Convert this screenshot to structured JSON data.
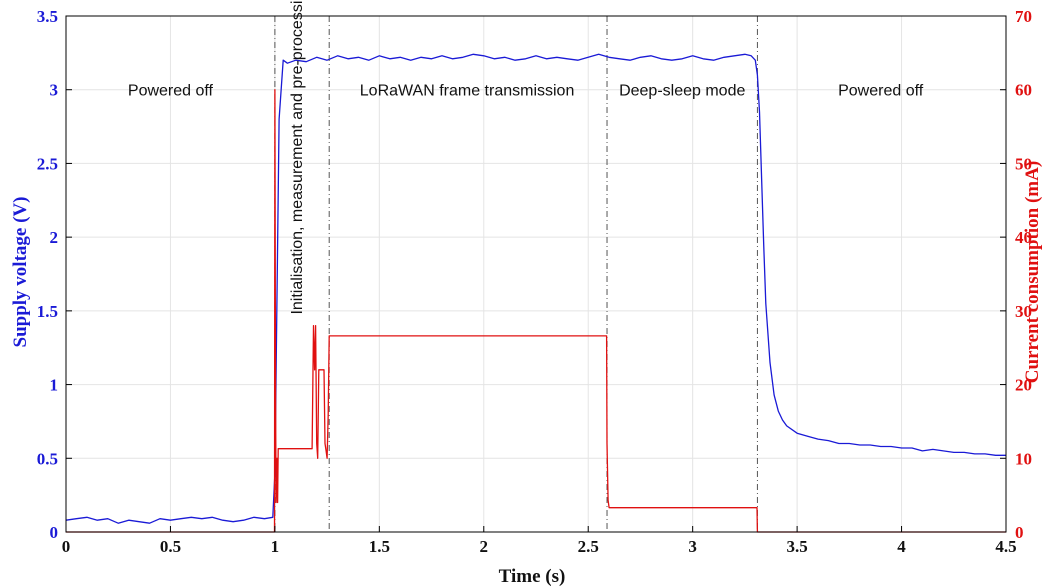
{
  "chart_data": {
    "type": "line",
    "xlabel": "Time (s)",
    "ylabel_left": "Supply voltage (V)",
    "ylabel_right": "Current consumption (mA)",
    "xlim": [
      0,
      4.5
    ],
    "ylim_left": [
      0,
      3.5
    ],
    "ylim_right": [
      0,
      70
    ],
    "x_ticks": [
      "0",
      "0.5",
      "1",
      "1.5",
      "2",
      "2.5",
      "3",
      "3.5",
      "4",
      "4.5"
    ],
    "y_left_ticks": [
      "0",
      "0.5",
      "1",
      "1.5",
      "2",
      "2.5",
      "3",
      "3.5"
    ],
    "y_right_ticks": [
      "0",
      "10",
      "20",
      "30",
      "40",
      "50",
      "60",
      "70"
    ],
    "grid": true,
    "colors": {
      "voltage": "#1a1ad6",
      "current": "#e01010",
      "phase_divider": "#555555"
    },
    "phase_boundaries": [
      1.0,
      1.26,
      2.59,
      3.31
    ],
    "annotations": [
      {
        "text": "Powered off",
        "x": 0.5,
        "y_left": 3.0,
        "rotation": 0
      },
      {
        "text": "Initialisation, measurement and pre-processing",
        "x": 1.13,
        "y_left": 2.6,
        "rotation": -90
      },
      {
        "text": "LoRaWAN frame transmission",
        "x": 1.92,
        "y_left": 3.0,
        "rotation": 0
      },
      {
        "text": "Deep-sleep mode",
        "x": 2.95,
        "y_left": 3.0,
        "rotation": 0
      },
      {
        "text": "Powered off",
        "x": 3.9,
        "y_left": 3.0,
        "rotation": 0
      }
    ],
    "series": [
      {
        "axis": "left",
        "x": [
          0,
          0.05,
          0.1,
          0.15,
          0.2,
          0.25,
          0.3,
          0.35,
          0.4,
          0.45,
          0.5,
          0.55,
          0.6,
          0.65,
          0.7,
          0.75,
          0.8,
          0.85,
          0.9,
          0.95,
          0.99,
          1.0,
          1.02,
          1.04,
          1.06,
          1.1,
          1.15,
          1.2,
          1.25,
          1.3,
          1.35,
          1.4,
          1.45,
          1.5,
          1.55,
          1.6,
          1.65,
          1.7,
          1.75,
          1.8,
          1.85,
          1.9,
          1.95,
          2.0,
          2.05,
          2.1,
          2.15,
          2.2,
          2.25,
          2.3,
          2.35,
          2.4,
          2.45,
          2.5,
          2.55,
          2.6,
          2.65,
          2.7,
          2.75,
          2.8,
          2.85,
          2.9,
          2.95,
          3.0,
          3.05,
          3.1,
          3.15,
          3.2,
          3.25,
          3.28,
          3.3,
          3.31,
          3.32,
          3.33,
          3.34,
          3.35,
          3.37,
          3.39,
          3.41,
          3.43,
          3.45,
          3.5,
          3.55,
          3.6,
          3.65,
          3.7,
          3.75,
          3.8,
          3.85,
          3.9,
          3.95,
          4.0,
          4.05,
          4.1,
          4.15,
          4.2,
          4.25,
          4.3,
          4.35,
          4.4,
          4.45,
          4.5
        ],
        "values": [
          0.08,
          0.09,
          0.1,
          0.08,
          0.09,
          0.06,
          0.08,
          0.07,
          0.06,
          0.09,
          0.08,
          0.09,
          0.1,
          0.09,
          0.1,
          0.08,
          0.07,
          0.08,
          0.1,
          0.09,
          0.1,
          0.4,
          2.8,
          3.2,
          3.18,
          3.2,
          3.19,
          3.22,
          3.2,
          3.23,
          3.21,
          3.22,
          3.2,
          3.23,
          3.21,
          3.22,
          3.2,
          3.22,
          3.21,
          3.23,
          3.21,
          3.22,
          3.24,
          3.23,
          3.21,
          3.22,
          3.2,
          3.21,
          3.23,
          3.21,
          3.22,
          3.21,
          3.2,
          3.22,
          3.24,
          3.22,
          3.21,
          3.2,
          3.22,
          3.23,
          3.21,
          3.2,
          3.21,
          3.23,
          3.21,
          3.2,
          3.22,
          3.23,
          3.24,
          3.23,
          3.2,
          3.1,
          2.85,
          2.4,
          1.95,
          1.55,
          1.15,
          0.93,
          0.82,
          0.76,
          0.72,
          0.67,
          0.65,
          0.63,
          0.62,
          0.6,
          0.6,
          0.59,
          0.59,
          0.58,
          0.58,
          0.57,
          0.57,
          0.55,
          0.56,
          0.55,
          0.54,
          0.54,
          0.53,
          0.53,
          0.52,
          0.52
        ]
      },
      {
        "axis": "right",
        "x": [
          0,
          0.998,
          1.0,
          1.003,
          1.006,
          1.01,
          1.013,
          1.016,
          1.02,
          1.03,
          1.04,
          1.06,
          1.1,
          1.15,
          1.178,
          1.18,
          1.185,
          1.19,
          1.195,
          1.2,
          1.205,
          1.21,
          1.215,
          1.22,
          1.225,
          1.235,
          1.24,
          1.245,
          1.25,
          1.255,
          1.26,
          1.265,
          1.27,
          1.4,
          1.6,
          2.0,
          2.4,
          2.588,
          2.59,
          2.595,
          2.6,
          2.7,
          3.0,
          3.3,
          3.308,
          3.31,
          3.32,
          4.5
        ],
        "values": [
          0,
          0,
          60,
          20,
          4,
          10,
          4,
          11.3,
          11.3,
          11.3,
          11.3,
          11.3,
          11.3,
          11.3,
          11.3,
          16,
          28,
          22,
          28,
          12,
          10,
          22,
          22,
          22,
          22,
          22,
          12,
          11,
          10,
          16,
          26.6,
          26.6,
          26.6,
          26.6,
          26.6,
          26.6,
          26.6,
          26.6,
          12,
          4.3,
          3.3,
          3.3,
          3.3,
          3.3,
          3.3,
          0,
          0,
          0
        ]
      }
    ]
  }
}
